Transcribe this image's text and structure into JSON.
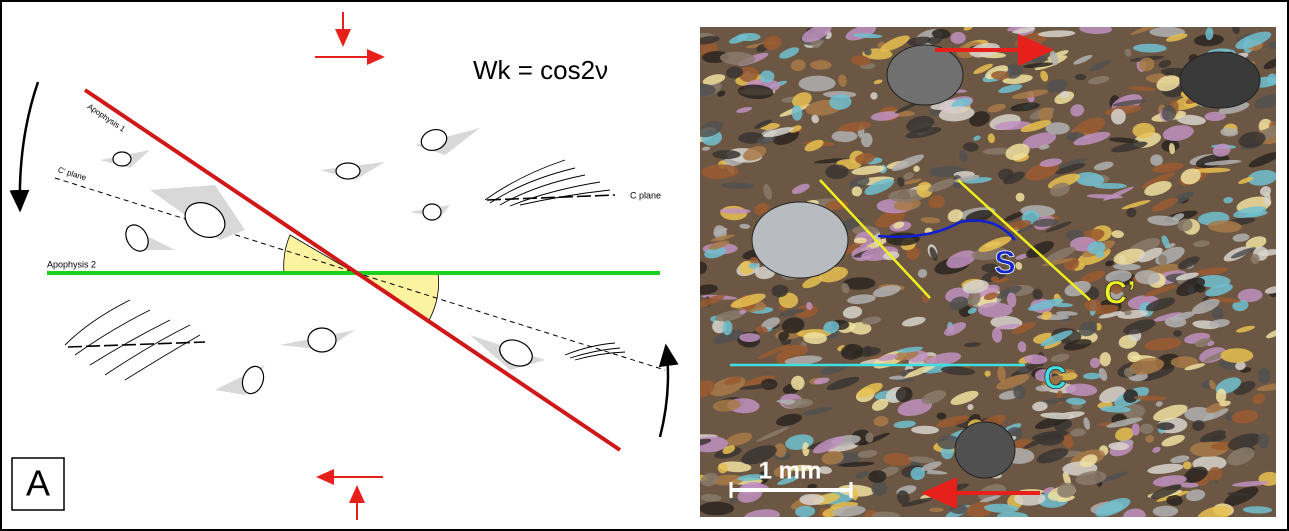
{
  "panel_label": "A",
  "equation": "Wk = cos2ν",
  "diagram": {
    "apophysis_1": "Apophysis 1",
    "apophysis_2": "Apophysis 2",
    "c_prime_plane": "C' plane",
    "c_plane": "C plane"
  },
  "micrograph": {
    "s_label": "S",
    "c_prime_label": "C’",
    "c_label": "C",
    "scale_bar": "1 mm"
  }
}
